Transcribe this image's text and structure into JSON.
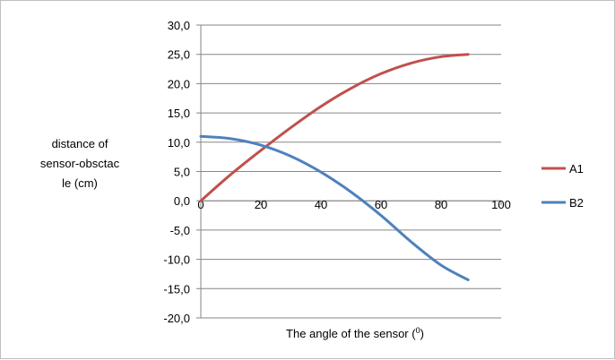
{
  "chart_data": {
    "type": "line",
    "title": "",
    "xlabel": "The angle of the sensor (",
    "xlabel_superscript": "0",
    "xlabel_suffix": ")",
    "ylabel_lines": [
      "distance of",
      "sensor-obsctac",
      "le (cm)"
    ],
    "xlim": [
      0,
      100
    ],
    "ylim": [
      -20,
      30
    ],
    "x_ticks": [
      0,
      20,
      40,
      60,
      80,
      100
    ],
    "x_tick_labels": [
      "0",
      "20",
      "40",
      "60",
      "80",
      "100"
    ],
    "y_ticks": [
      30,
      25,
      20,
      15,
      10,
      5,
      0,
      -5,
      -10,
      -15,
      -20
    ],
    "y_tick_labels": [
      "30,0",
      "25,0",
      "20,0",
      "15,0",
      "10,0",
      "5,0",
      "0,0",
      "-5,0",
      "-10,0",
      "-15,0",
      "-20,0"
    ],
    "grid": true,
    "legend_position": "right",
    "series": [
      {
        "name": "A1",
        "color": "#c0504d",
        "x": [
          0,
          10,
          20,
          30,
          40,
          50,
          60,
          70,
          80,
          89
        ],
        "y": [
          0.0,
          4.5,
          8.6,
          12.5,
          16.1,
          19.2,
          21.7,
          23.5,
          24.6,
          25.0
        ]
      },
      {
        "name": "B2",
        "color": "#4f81bd",
        "x": [
          0,
          10,
          20,
          30,
          40,
          50,
          60,
          70,
          80,
          89
        ],
        "y": [
          11.0,
          10.6,
          9.5,
          7.6,
          4.9,
          1.5,
          -2.5,
          -7.0,
          -11.0,
          -13.5
        ]
      }
    ]
  }
}
